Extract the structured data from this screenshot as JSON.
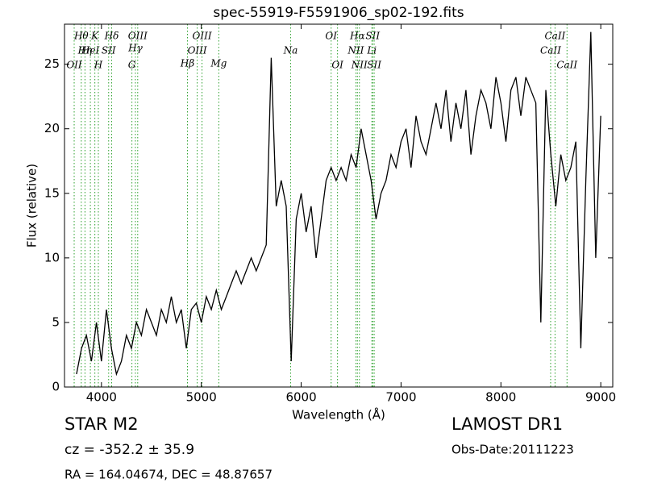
{
  "chart_data": {
    "type": "line",
    "title": "spec-55919-F5591906_sp02-192.fits",
    "x_label": "Wavelength (Å)",
    "y_label": "Flux (relative)",
    "xlim": [
      3630,
      9120
    ],
    "ylim": [
      0,
      28.1
    ],
    "xticks": [
      4000,
      5000,
      6000,
      7000,
      8000,
      9000
    ],
    "yticks": [
      0,
      5,
      10,
      15,
      20,
      25
    ],
    "line_color": "#000000",
    "marker_line_color": "#2ca02c",
    "x": [
      3750,
      3800,
      3850,
      3900,
      3950,
      4000,
      4050,
      4100,
      4150,
      4200,
      4250,
      4300,
      4350,
      4400,
      4450,
      4500,
      4550,
      4600,
      4650,
      4700,
      4750,
      4800,
      4850,
      4900,
      4950,
      5000,
      5050,
      5100,
      5150,
      5200,
      5250,
      5300,
      5350,
      5400,
      5450,
      5500,
      5550,
      5600,
      5650,
      5700,
      5750,
      5800,
      5850,
      5900,
      5950,
      6000,
      6050,
      6100,
      6150,
      6200,
      6250,
      6300,
      6350,
      6400,
      6450,
      6500,
      6550,
      6600,
      6650,
      6700,
      6750,
      6800,
      6850,
      6900,
      6950,
      7000,
      7050,
      7100,
      7150,
      7200,
      7250,
      7300,
      7350,
      7400,
      7450,
      7500,
      7550,
      7600,
      7650,
      7700,
      7750,
      7800,
      7850,
      7900,
      7950,
      8000,
      8050,
      8100,
      8150,
      8200,
      8250,
      8300,
      8350,
      8400,
      8450,
      8500,
      8550,
      8600,
      8650,
      8700,
      8750,
      8800,
      8850,
      8900,
      8950,
      9000
    ],
    "values": [
      1,
      3,
      4,
      2,
      5,
      2,
      6,
      3,
      1,
      2,
      4,
      3,
      5,
      4,
      6,
      5,
      4,
      6,
      5,
      7,
      5,
      6,
      3,
      6,
      6.5,
      5,
      7,
      6,
      7.5,
      6,
      7,
      8,
      9,
      8,
      9,
      10,
      9,
      10,
      11,
      25.5,
      14,
      16,
      14,
      2,
      13,
      15,
      12,
      14,
      10,
      13,
      16,
      17,
      16,
      17,
      16,
      18,
      17,
      20,
      18,
      16,
      13,
      15,
      16,
      18,
      17,
      19,
      20,
      17,
      21,
      19,
      18,
      20,
      22,
      20,
      23,
      19,
      22,
      20,
      23,
      18,
      21,
      23,
      22,
      20,
      24,
      22,
      19,
      23,
      24,
      21,
      24,
      23,
      22,
      5,
      23,
      18,
      14,
      18,
      16,
      17,
      19,
      3,
      16,
      27.5,
      10,
      21
    ],
    "spectral_lines": [
      {
        "name": "OII",
        "wavelength": 3727
      },
      {
        "name": "Hθ",
        "wavelength": 3798
      },
      {
        "name": "Hη",
        "wavelength": 3835
      },
      {
        "name": "HeI",
        "wavelength": 3889
      },
      {
        "name": "K",
        "wavelength": 3934
      },
      {
        "name": "H",
        "wavelength": 3969
      },
      {
        "name": "SII",
        "wavelength": 4072
      },
      {
        "name": "Hδ",
        "wavelength": 4102
      },
      {
        "name": "G",
        "wavelength": 4305
      },
      {
        "name": "Hγ",
        "wavelength": 4340
      },
      {
        "name": "OIII",
        "wavelength": 4363
      },
      {
        "name": "Hβ",
        "wavelength": 4861
      },
      {
        "name": "OIII",
        "wavelength": 4959
      },
      {
        "name": "OIII",
        "wavelength": 5007
      },
      {
        "name": "Mg",
        "wavelength": 5175
      },
      {
        "name": "Na",
        "wavelength": 5894
      },
      {
        "name": "OI",
        "wavelength": 6300
      },
      {
        "name": "OI",
        "wavelength": 6364
      },
      {
        "name": "NII",
        "wavelength": 6548
      },
      {
        "name": "Hα",
        "wavelength": 6563
      },
      {
        "name": "NII",
        "wavelength": 6583
      },
      {
        "name": "Li",
        "wavelength": 6708
      },
      {
        "name": "SII",
        "wavelength": 6716
      },
      {
        "name": "SII",
        "wavelength": 6731
      },
      {
        "name": "CaII",
        "wavelength": 8498
      },
      {
        "name": "CaII",
        "wavelength": 8542
      },
      {
        "name": "CaII",
        "wavelength": 8662
      }
    ],
    "annotations": {
      "object": "STAR   M2",
      "redshift": "cz = -352.2 ± 35.9",
      "coords": "RA = 164.04674, DEC = 48.87657",
      "survey": "LAMOST DR1",
      "obs_date": "Obs-Date:20111223"
    }
  }
}
